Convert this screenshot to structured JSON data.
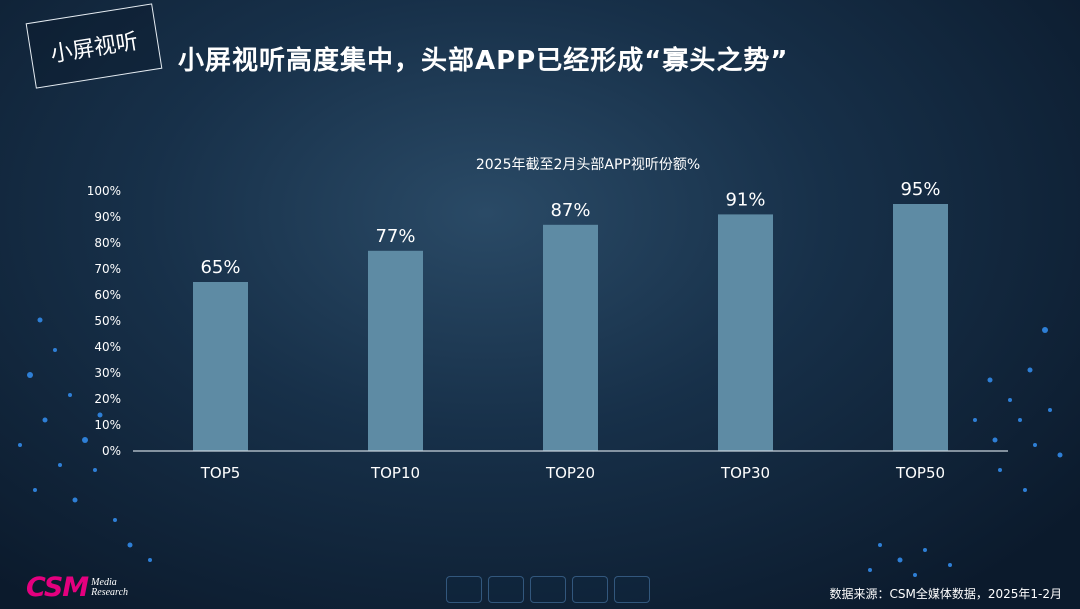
{
  "tag": {
    "label": "小屏视听"
  },
  "headline": "小屏视听高度集中，头部APP已经形成“寡头之势”",
  "source": "数据来源：CSM全媒体数据，2025年1-2月",
  "logo": {
    "main": "CSM",
    "sub1": "Media",
    "sub2": "Research"
  },
  "colors": {
    "bar": "#5e8ba4",
    "axis": "#c8d3dc",
    "accent": "#e4007f"
  },
  "chart_data": {
    "type": "bar",
    "title": "2025年截至2月头部APP视听份额%",
    "categories": [
      "TOP5",
      "TOP10",
      "TOP20",
      "TOP30",
      "TOP50"
    ],
    "values": [
      65,
      77,
      87,
      91,
      95
    ],
    "data_labels": [
      "65%",
      "77%",
      "87%",
      "91%",
      "95%"
    ],
    "ylim": [
      0,
      100
    ],
    "yticks": [
      0,
      10,
      20,
      30,
      40,
      50,
      60,
      70,
      80,
      90,
      100
    ],
    "ytick_labels": [
      "0%",
      "10%",
      "20%",
      "30%",
      "40%",
      "50%",
      "60%",
      "70%",
      "80%",
      "90%",
      "100%"
    ],
    "grid": false,
    "legend": "none"
  }
}
